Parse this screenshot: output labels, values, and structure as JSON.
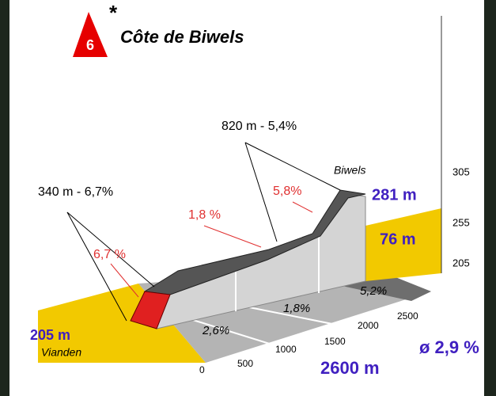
{
  "header": {
    "number": "6",
    "star": "*",
    "title": "Côte de Biwels"
  },
  "callouts": {
    "upper": "820 m - 5,4%",
    "lower": "340 m - 6,7%"
  },
  "profile": {
    "finish": "Biwels",
    "grade_top": "5,8%",
    "grade_middle": "1,8 %",
    "grade_start": "6,7 %",
    "finish_altitude": "281 m",
    "elevation_gain": "76 m",
    "start_altitude": "205 m",
    "start": "Vianden"
  },
  "altitude_scale": [
    "305",
    "255",
    "205"
  ],
  "floor_grades": [
    "2,6%",
    "1,8%",
    "5,2%"
  ],
  "distance_scale": [
    "0",
    "500",
    "1000",
    "1500",
    "2000",
    "2500"
  ],
  "length": "2600 m",
  "average": "ø 2,9 %"
}
